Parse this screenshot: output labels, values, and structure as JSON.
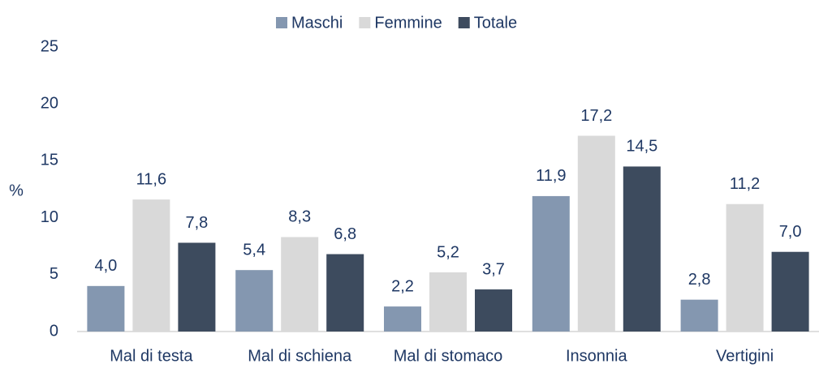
{
  "chart_data": {
    "type": "bar",
    "y_label": "%",
    "categories": [
      "Mal di testa",
      "Mal di schiena",
      "Mal di stomaco",
      "Insonnia",
      "Vertigini"
    ],
    "series": [
      {
        "name": "Maschi",
        "color": "#8497b0",
        "values": [
          4.0,
          5.4,
          2.2,
          11.9,
          2.8
        ],
        "value_labels": [
          "4,0",
          "5,4",
          "2,2",
          "11,9",
          "2,8"
        ]
      },
      {
        "name": "Femmine",
        "color": "#d9d9d9",
        "values": [
          11.6,
          8.3,
          5.2,
          17.2,
          11.2
        ],
        "value_labels": [
          "11,6",
          "8,3",
          "5,2",
          "17,2",
          "11,2"
        ]
      },
      {
        "name": "Totale",
        "color": "#3d4b5e",
        "values": [
          7.8,
          6.8,
          3.7,
          14.5,
          7.0
        ],
        "value_labels": [
          "7,8",
          "6,8",
          "3,7",
          "14,5",
          "7,0"
        ]
      }
    ],
    "ylim": [
      0,
      25
    ],
    "yticks": [
      0,
      5,
      10,
      15,
      20,
      25
    ],
    "grid": false,
    "legend": "top"
  }
}
